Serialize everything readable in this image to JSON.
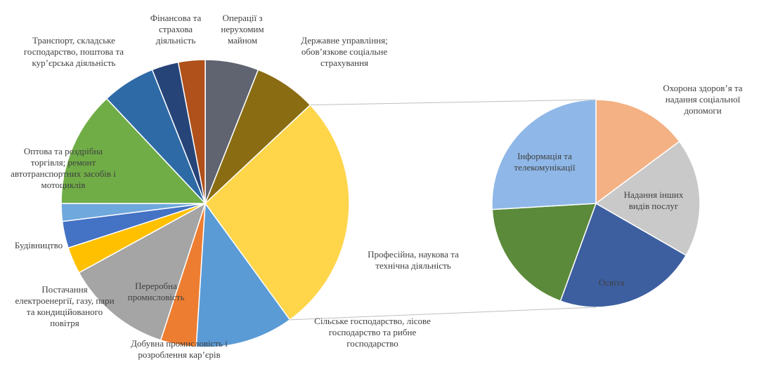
{
  "chart_data": [
    {
      "type": "pie",
      "categories": [
        "Операції з нерухомим майном",
        "Державне управління; обов’язкове соціальне страхування",
        null,
        "Сільське господарство, лісове господарство та рибне господарство",
        "Добувна промисловість і розроблення кар’єрів",
        "Переробна промисловість",
        "Постачання електроенергії, газу, пари та кондиційованого повітря",
        "Будівництво",
        null,
        "Оптова та роздрібна торгівля; ремонт автотранспортних засобів і мотоциклів",
        "Транспорт, складське господарство, поштова та кур’єрська діяльність",
        null,
        "Фінансова та страхова діяльність"
      ],
      "values": [
        6,
        7,
        27,
        11,
        4,
        12,
        3,
        3,
        2,
        13,
        6,
        3,
        3
      ],
      "colors": [
        "#5f6470",
        "#8a6d12",
        "#ffd54a",
        "#5b9bd5",
        "#ed7d31",
        "#a5a5a5",
        "#ffc000",
        "#4472c4",
        "#6fa8dc",
        "#70ad47",
        "#2e6aa6",
        "#264478",
        "#b0501a"
      ]
    },
    {
      "type": "pie",
      "categories": [
        "Охорона здоров’я та надання соціальної допомоги",
        "Надання інших видів послуг",
        "Освіта",
        "Професійна, наукова та технічна діяльність",
        "Інформація та телекомунікації"
      ],
      "values": [
        4,
        5,
        6,
        5,
        7
      ],
      "colors": [
        "#f4b183",
        "#c9c9c9",
        "#3d5fa0",
        "#5b8a3a",
        "#8fb8e8"
      ]
    }
  ]
}
